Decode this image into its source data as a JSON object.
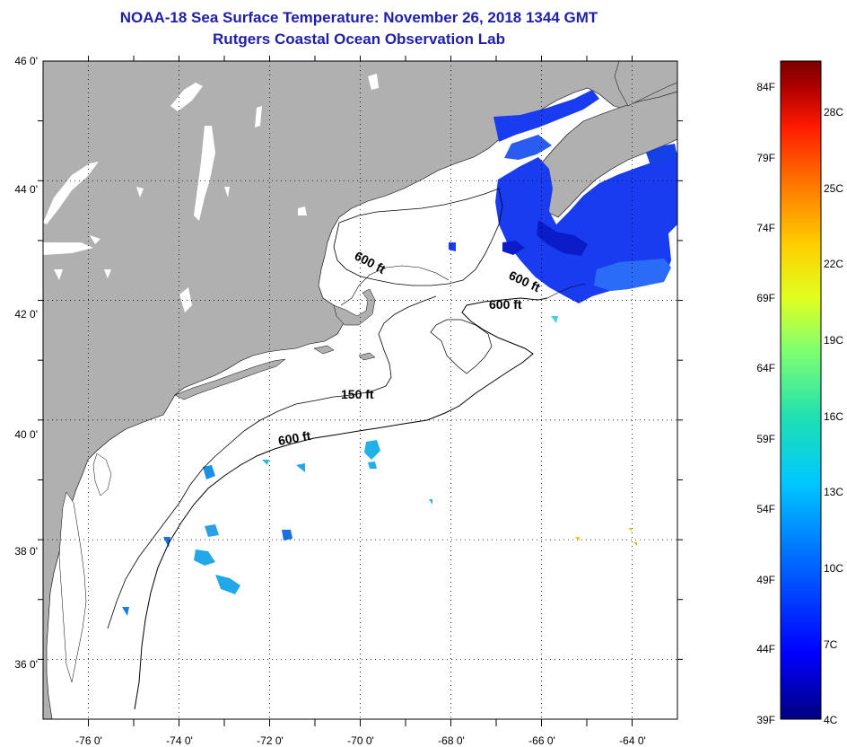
{
  "title": {
    "line1": "NOAA-18 Sea Surface Temperature:  November 26, 2018 1344 GMT",
    "line2": "Rutgers Coastal Ocean Observation Lab"
  },
  "map": {
    "lon_range": [
      -77,
      -63
    ],
    "lat_range": [
      35,
      46
    ],
    "lat_labels": [
      "46 0'",
      "44 0'",
      "42 0'",
      "40 0'",
      "38 0'",
      "36 0'"
    ],
    "lon_labels": [
      "-76 0'",
      "-74 0'",
      "-72 0'",
      "-70 0'",
      "-68 0'",
      "-66 0'",
      "-64 0'"
    ],
    "contour_labels": [
      {
        "text": "600 ft",
        "lon": -69.4,
        "lat": 43.2
      },
      {
        "text": "600 ft",
        "lon": -66.5,
        "lat": 42.6
      },
      {
        "text": "600 ft",
        "lon": -65.5,
        "lat": 42.1
      },
      {
        "text": "150 ft",
        "lon": -69.6,
        "lat": 40.8
      },
      {
        "text": "600 ft",
        "lon": -71.3,
        "lat": 40.0
      }
    ],
    "colors": {
      "land": "#b0b0b0",
      "ocean": "#ffffff",
      "inland_water": "#ffffff"
    }
  },
  "colorbar": {
    "fahrenheit_labels": [
      "84F",
      "79F",
      "74F",
      "69F",
      "64F",
      "59F",
      "54F",
      "49F",
      "44F",
      "39F"
    ],
    "celsius_labels": [
      "28C",
      "25C",
      "22C",
      "19C",
      "16C",
      "13C",
      "10C",
      "7C",
      "4C"
    ],
    "colors": [
      "#00008b",
      "#0000ff",
      "#0070ff",
      "#00c8ff",
      "#20e0c0",
      "#7cff7c",
      "#e0ff20",
      "#ffd000",
      "#ff8000",
      "#ff2000",
      "#b00000",
      "#800000"
    ]
  }
}
